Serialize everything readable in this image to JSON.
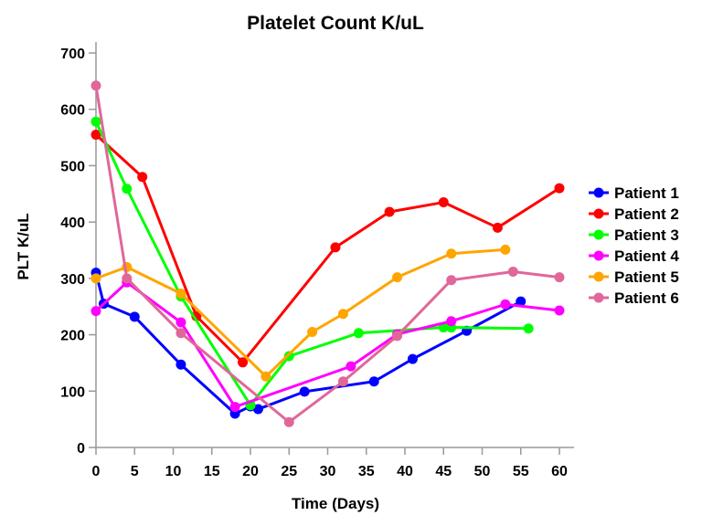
{
  "chart_data": {
    "type": "line",
    "title": "Platelet Count  K/uL",
    "xlabel": "Time (Days)",
    "ylabel": "PLT  K/uL",
    "xlim": [
      0,
      62
    ],
    "ylim": [
      0,
      720
    ],
    "xticks": [
      0,
      5,
      10,
      15,
      20,
      25,
      30,
      35,
      40,
      45,
      50,
      55,
      60
    ],
    "yticks": [
      0,
      100,
      200,
      300,
      400,
      500,
      600,
      700
    ],
    "grid": false,
    "legend": "right",
    "series": [
      {
        "name": "Patient 1",
        "color": "#0000ff",
        "x": [
          0,
          1,
          5,
          11,
          18,
          20,
          21,
          27,
          36,
          41,
          48,
          55
        ],
        "y": [
          310,
          255,
          232,
          147,
          60,
          73,
          68,
          99,
          117,
          157,
          207,
          259
        ]
      },
      {
        "name": "Patient 2",
        "color": "#ff0000",
        "x": [
          0,
          6,
          13,
          19,
          31,
          38,
          45,
          52,
          60
        ],
        "y": [
          555,
          480,
          233,
          151,
          355,
          418,
          435,
          390,
          460
        ]
      },
      {
        "name": "Patient 3",
        "color": "#00ff00",
        "x": [
          0,
          4,
          11,
          20,
          25,
          34,
          45,
          46,
          56
        ],
        "y": [
          578,
          459,
          268,
          75,
          162,
          203,
          213,
          213,
          211
        ]
      },
      {
        "name": "Patient 4",
        "color": "#ff00ff",
        "x": [
          0,
          4,
          11,
          18,
          33,
          39,
          46,
          53,
          60
        ],
        "y": [
          242,
          293,
          222,
          72,
          144,
          201,
          224,
          254,
          243
        ]
      },
      {
        "name": "Patient 5",
        "color": "#ffa500",
        "x": [
          0,
          4,
          11,
          22,
          28,
          32,
          39,
          46,
          53
        ],
        "y": [
          300,
          320,
          273,
          126,
          205,
          237,
          302,
          344,
          351
        ]
      },
      {
        "name": "Patient 6",
        "color": "#e0679a",
        "x": [
          0,
          4,
          11,
          25,
          32,
          39,
          46,
          54,
          60
        ],
        "y": [
          642,
          300,
          203,
          45,
          117,
          198,
          297,
          312,
          302
        ]
      }
    ]
  }
}
